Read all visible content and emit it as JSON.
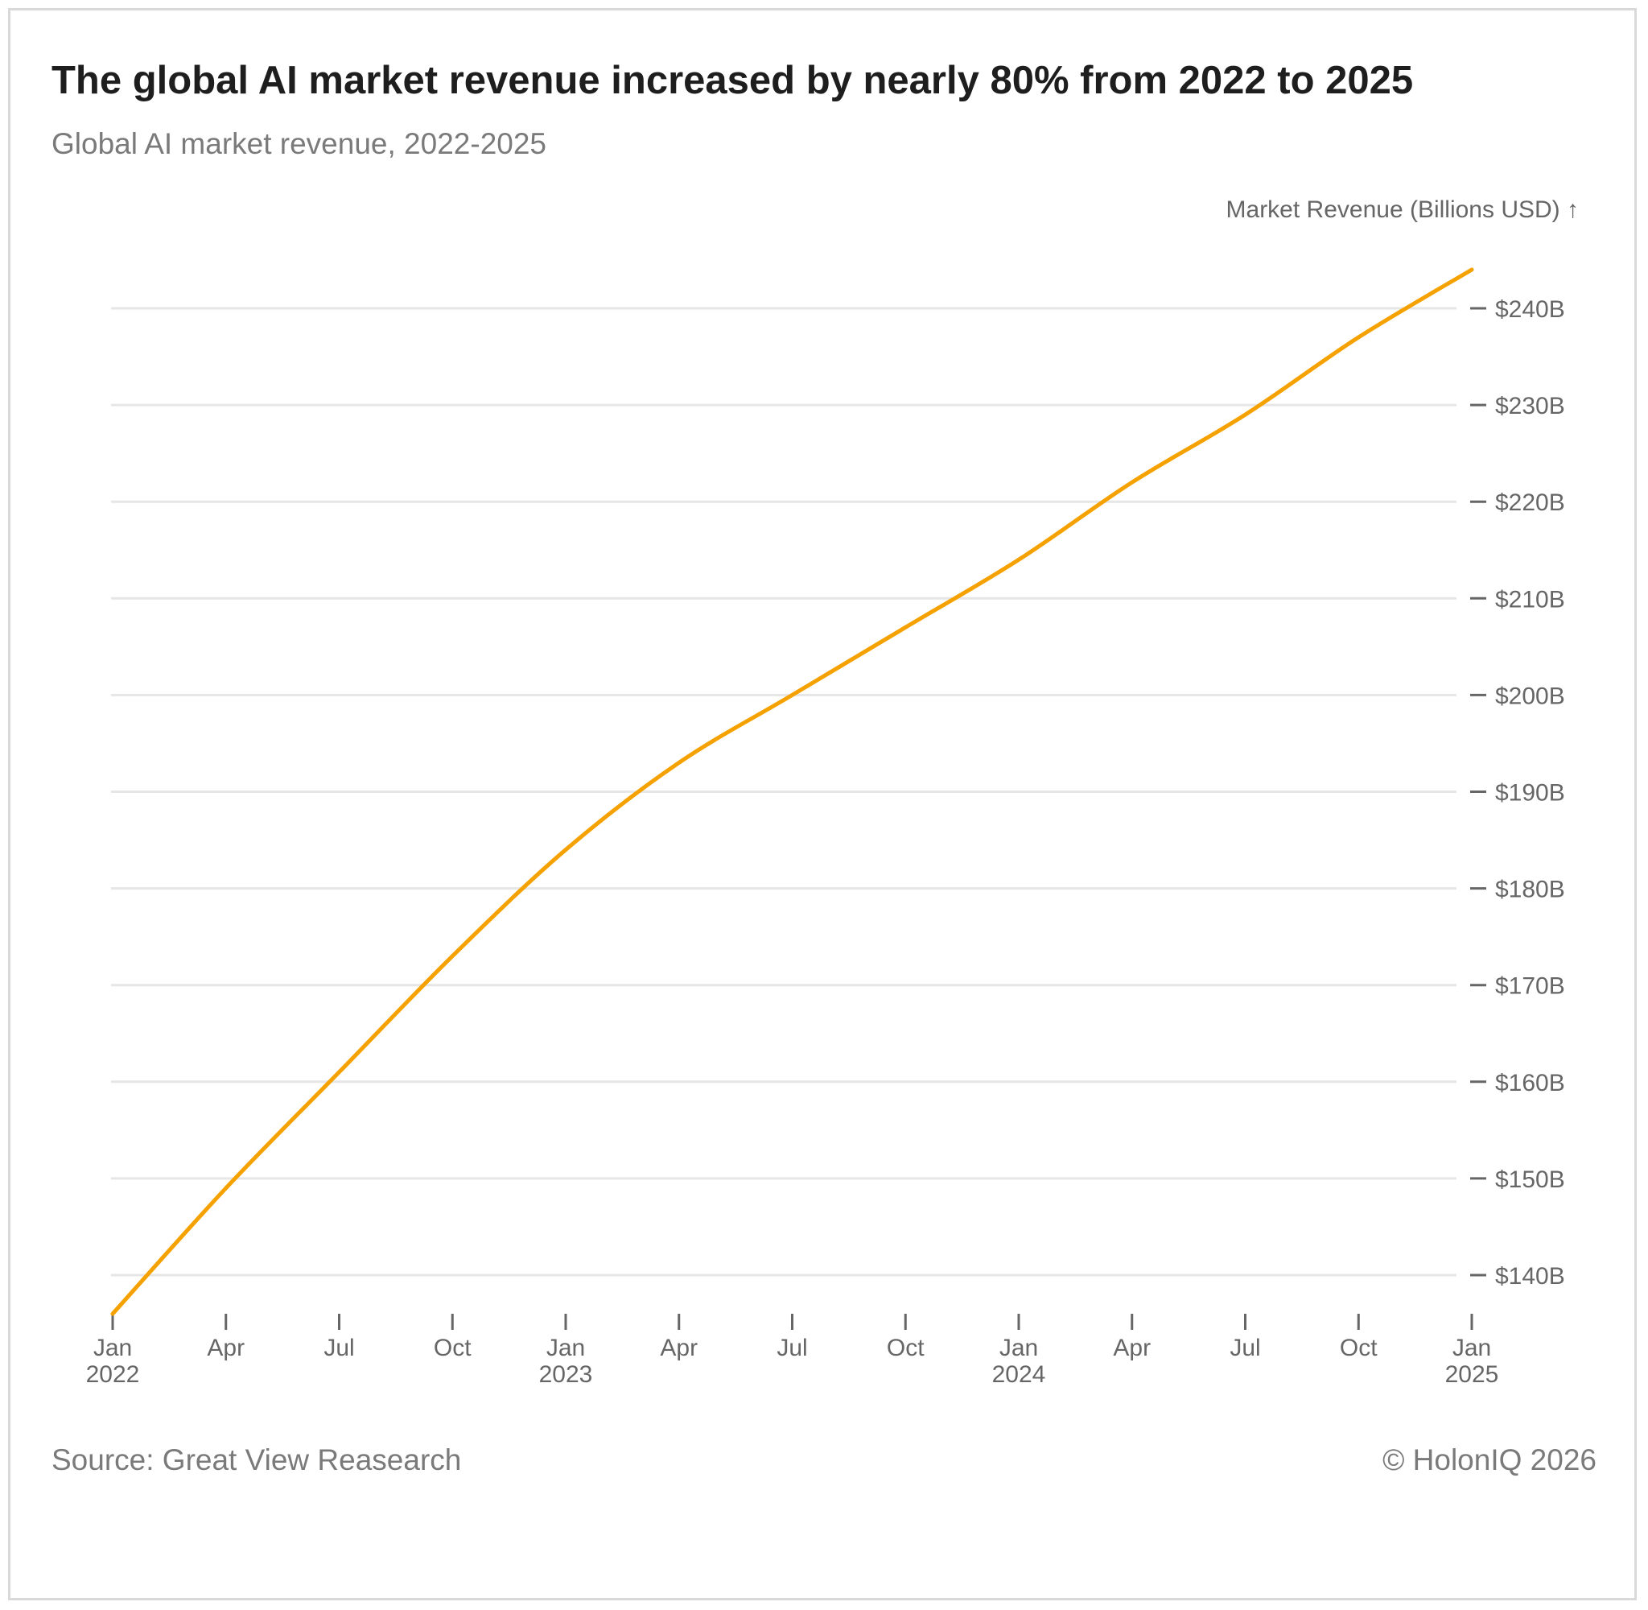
{
  "header": {
    "title": "The global AI market revenue increased by nearly 80% from 2022 to 2025",
    "subtitle": "Global AI market revenue, 2022-2025"
  },
  "footer": {
    "source": "Source: Great View Reasearch",
    "copyright": "© HolonIQ 2026"
  },
  "colors": {
    "line": "#F5A100",
    "grid": "#e6e6e6",
    "axis_text": "#666666"
  },
  "chart_data": {
    "type": "line",
    "title": "The global AI market revenue increased by nearly 80% from 2022 to 2025",
    "subtitle": "Global AI market revenue, 2022-2025",
    "ylabel": "Market Revenue (Billions USD) ↑",
    "xlabel": "",
    "ylim": [
      136,
      244
    ],
    "y_axis_position": "right",
    "grid": true,
    "yticks": [
      {
        "value": 140,
        "label": "$140B"
      },
      {
        "value": 150,
        "label": "$150B"
      },
      {
        "value": 160,
        "label": "$160B"
      },
      {
        "value": 170,
        "label": "$170B"
      },
      {
        "value": 180,
        "label": "$180B"
      },
      {
        "value": 190,
        "label": "$190B"
      },
      {
        "value": 200,
        "label": "$200B"
      },
      {
        "value": 210,
        "label": "$210B"
      },
      {
        "value": 220,
        "label": "$220B"
      },
      {
        "value": 230,
        "label": "$230B"
      },
      {
        "value": 240,
        "label": "$240B"
      }
    ],
    "xlim": [
      0,
      36
    ],
    "xticks": [
      {
        "month": 0,
        "label": "Jan",
        "year": "2022"
      },
      {
        "month": 3,
        "label": "Apr",
        "year": ""
      },
      {
        "month": 6,
        "label": "Jul",
        "year": ""
      },
      {
        "month": 9,
        "label": "Oct",
        "year": ""
      },
      {
        "month": 12,
        "label": "Jan",
        "year": "2023"
      },
      {
        "month": 15,
        "label": "Apr",
        "year": ""
      },
      {
        "month": 18,
        "label": "Jul",
        "year": ""
      },
      {
        "month": 21,
        "label": "Oct",
        "year": ""
      },
      {
        "month": 24,
        "label": "Jan",
        "year": "2024"
      },
      {
        "month": 27,
        "label": "Apr",
        "year": ""
      },
      {
        "month": 30,
        "label": "Jul",
        "year": ""
      },
      {
        "month": 33,
        "label": "Oct",
        "year": ""
      },
      {
        "month": 36,
        "label": "Jan",
        "year": "2025"
      }
    ],
    "series": [
      {
        "name": "Global AI market revenue",
        "x": [
          0,
          3,
          6,
          9,
          12,
          15,
          18,
          21,
          24,
          27,
          30,
          33,
          36
        ],
        "y": [
          136,
          149,
          161,
          173,
          184,
          193,
          200,
          207,
          214,
          222,
          229,
          237,
          244
        ]
      }
    ]
  }
}
